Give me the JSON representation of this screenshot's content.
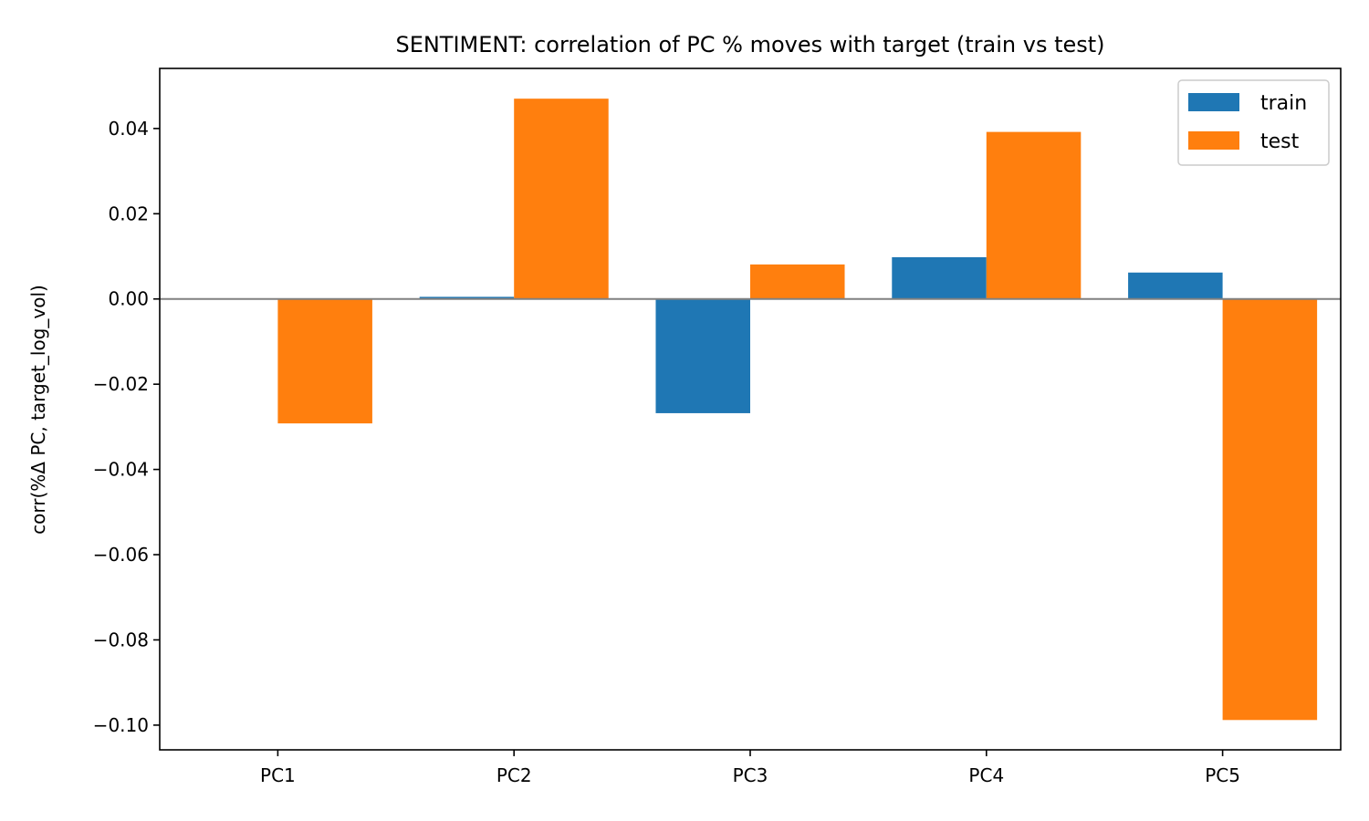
{
  "chart_data": {
    "type": "bar",
    "title": "SENTIMENT: correlation of PC % moves with target (train vs test)",
    "xlabel": "",
    "ylabel": "corr(%Δ PC, target_log_vol)",
    "categories": [
      "PC1",
      "PC2",
      "PC3",
      "PC4",
      "PC5"
    ],
    "series": [
      {
        "name": "train",
        "color": "#1f77b4",
        "values": [
          0.0,
          0.0005,
          -0.0268,
          0.0098,
          0.0062
        ]
      },
      {
        "name": "test",
        "color": "#ff7f0e",
        "values": [
          -0.0292,
          0.047,
          0.0081,
          0.0392,
          -0.0988
        ]
      }
    ],
    "ylim": [
      -0.1058,
      0.0541
    ],
    "yticks": [
      0.04,
      0.02,
      0.0,
      -0.02,
      -0.04,
      -0.06,
      -0.08,
      -0.1
    ],
    "ytick_labels": [
      "0.04",
      "0.02",
      "0.00",
      "−0.02",
      "−0.04",
      "−0.06",
      "−0.08",
      "−0.10"
    ],
    "zero_line_color": "#808080",
    "grid": false,
    "legend_position": "top-right"
  }
}
